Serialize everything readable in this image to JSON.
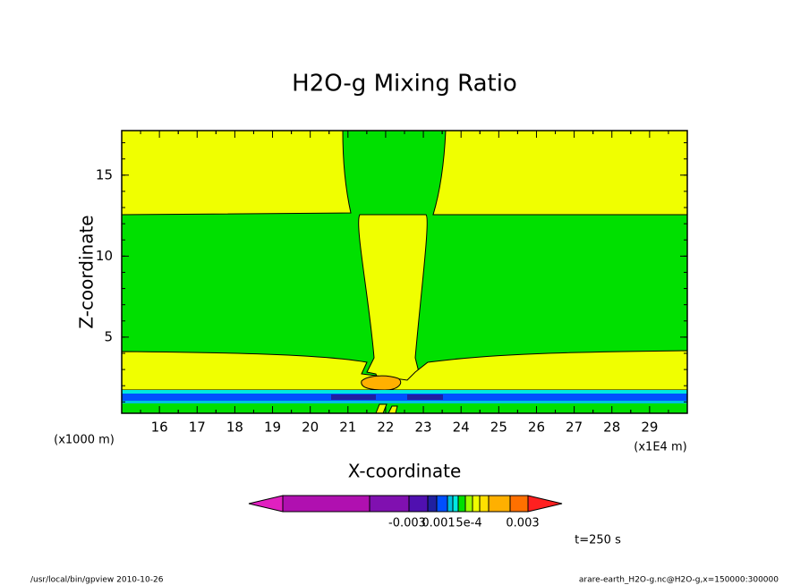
{
  "chart_data": {
    "type": "contour",
    "title": "H2O-g Mixing Ratio",
    "x_label": "X-coordinate",
    "y_label": "Z-coordinate",
    "x_unit": "(x1E4 m)",
    "y_unit": "(x1000 m)",
    "xlim": [
      15,
      30
    ],
    "xticks": [
      16,
      17,
      18,
      19,
      20,
      21,
      22,
      23,
      24,
      25,
      26,
      27,
      28,
      29
    ],
    "ylim": [
      0.3,
      17.75
    ],
    "yticks": [
      5,
      10,
      15
    ],
    "colorbar_labels": [
      "-0.003",
      "0.001",
      "5e-4",
      "0.003"
    ],
    "time_label": "t=250 s"
  },
  "footer": {
    "left": "/usr/local/bin/gpview  2010-10-26",
    "right": "arare-earth_H2O-g.nc@H2O-g,x=150000:300000"
  }
}
